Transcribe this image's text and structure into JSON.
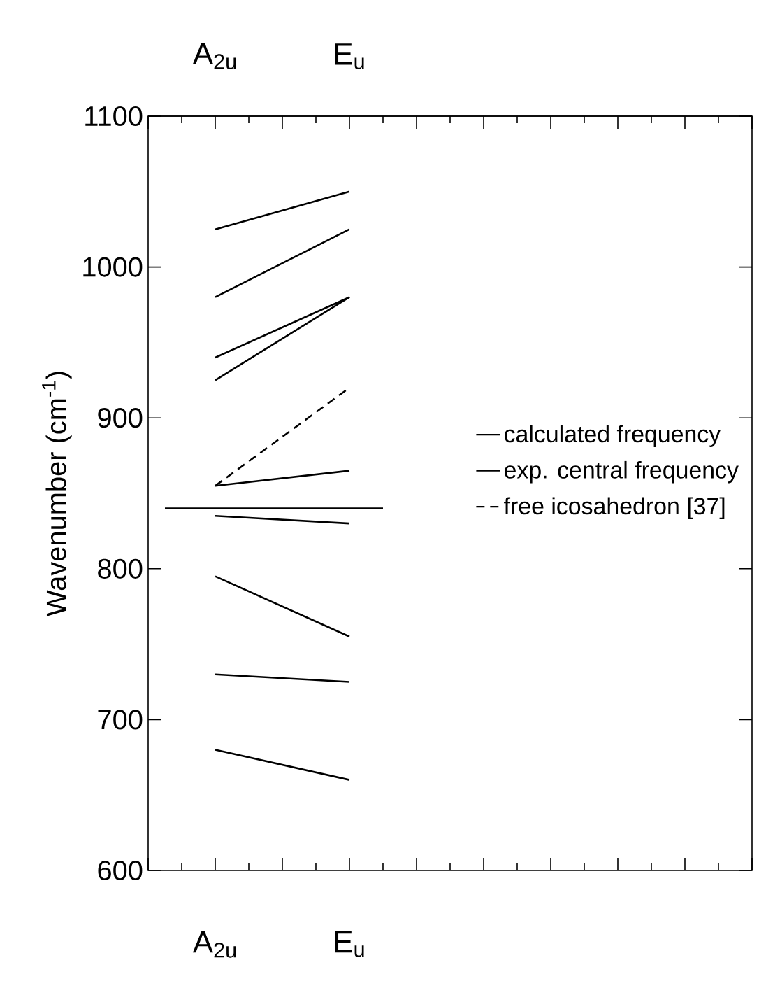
{
  "chart_data": {
    "type": "line",
    "ylabel": "Wavenumber (cm$^{-1}$)",
    "categories": [
      null,
      "A$_{2u}$",
      null,
      "E$_{u}$",
      null,
      null,
      null,
      null,
      null,
      null
    ],
    "ylim": [
      600,
      1100
    ],
    "yticks": [
      600,
      700,
      800,
      900,
      1000,
      1100
    ],
    "legend": "right",
    "marker": "none",
    "ref_lines": [
      {
        "axis": "y",
        "value": 840,
        "label": "exp. central frequency",
        "color": "#000000",
        "line_style": "solid"
      }
    ],
    "series": [
      {
        "name": "calculated frequency",
        "color": "#000000",
        "line_style": "solid",
        "x": [
          "A$_{2u}$",
          "E$_{u}$"
        ],
        "values": [
          1025,
          1050
        ]
      },
      {
        "color": "#000000",
        "line_style": "solid",
        "x": [
          "A$_{2u}$",
          "E$_{u}$"
        ],
        "values": [
          980,
          1025
        ]
      },
      {
        "color": "#000000",
        "line_style": "solid",
        "x": [
          "A$_{2u}$",
          "E$_{u}$"
        ],
        "values": [
          940,
          980
        ]
      },
      {
        "color": "#000000",
        "line_style": "solid",
        "x": [
          "A$_{2u}$",
          "E$_{u}$"
        ],
        "values": [
          925,
          980
        ]
      },
      {
        "color": "#000000",
        "line_style": "solid",
        "x": [
          "A$_{2u}$",
          "E$_{u}$"
        ],
        "values": [
          855,
          865
        ]
      },
      {
        "color": "#000000",
        "line_style": "solid",
        "x": [
          "A$_{2u}$",
          "E$_{u}$"
        ],
        "values": [
          835,
          830
        ]
      },
      {
        "color": "#000000",
        "line_style": "solid",
        "x": [
          "A$_{2u}$",
          "E$_{u}$"
        ],
        "values": [
          795,
          755
        ]
      },
      {
        "color": "#000000",
        "line_style": "solid",
        "x": [
          "A$_{2u}$",
          "E$_{u}$"
        ],
        "values": [
          730,
          725
        ]
      },
      {
        "color": "#000000",
        "line_style": "solid",
        "x": [
          "A$_{2u}$",
          "E$_{u}$"
        ],
        "values": [
          680,
          660
        ]
      },
      {
        "name": "free icosahedron [37]",
        "color": "#000000",
        "line_style": "dashed",
        "x": [
          "A$_{2u}$",
          "E$_{u}$"
        ],
        "values": [
          855,
          920
        ]
      }
    ]
  }
}
